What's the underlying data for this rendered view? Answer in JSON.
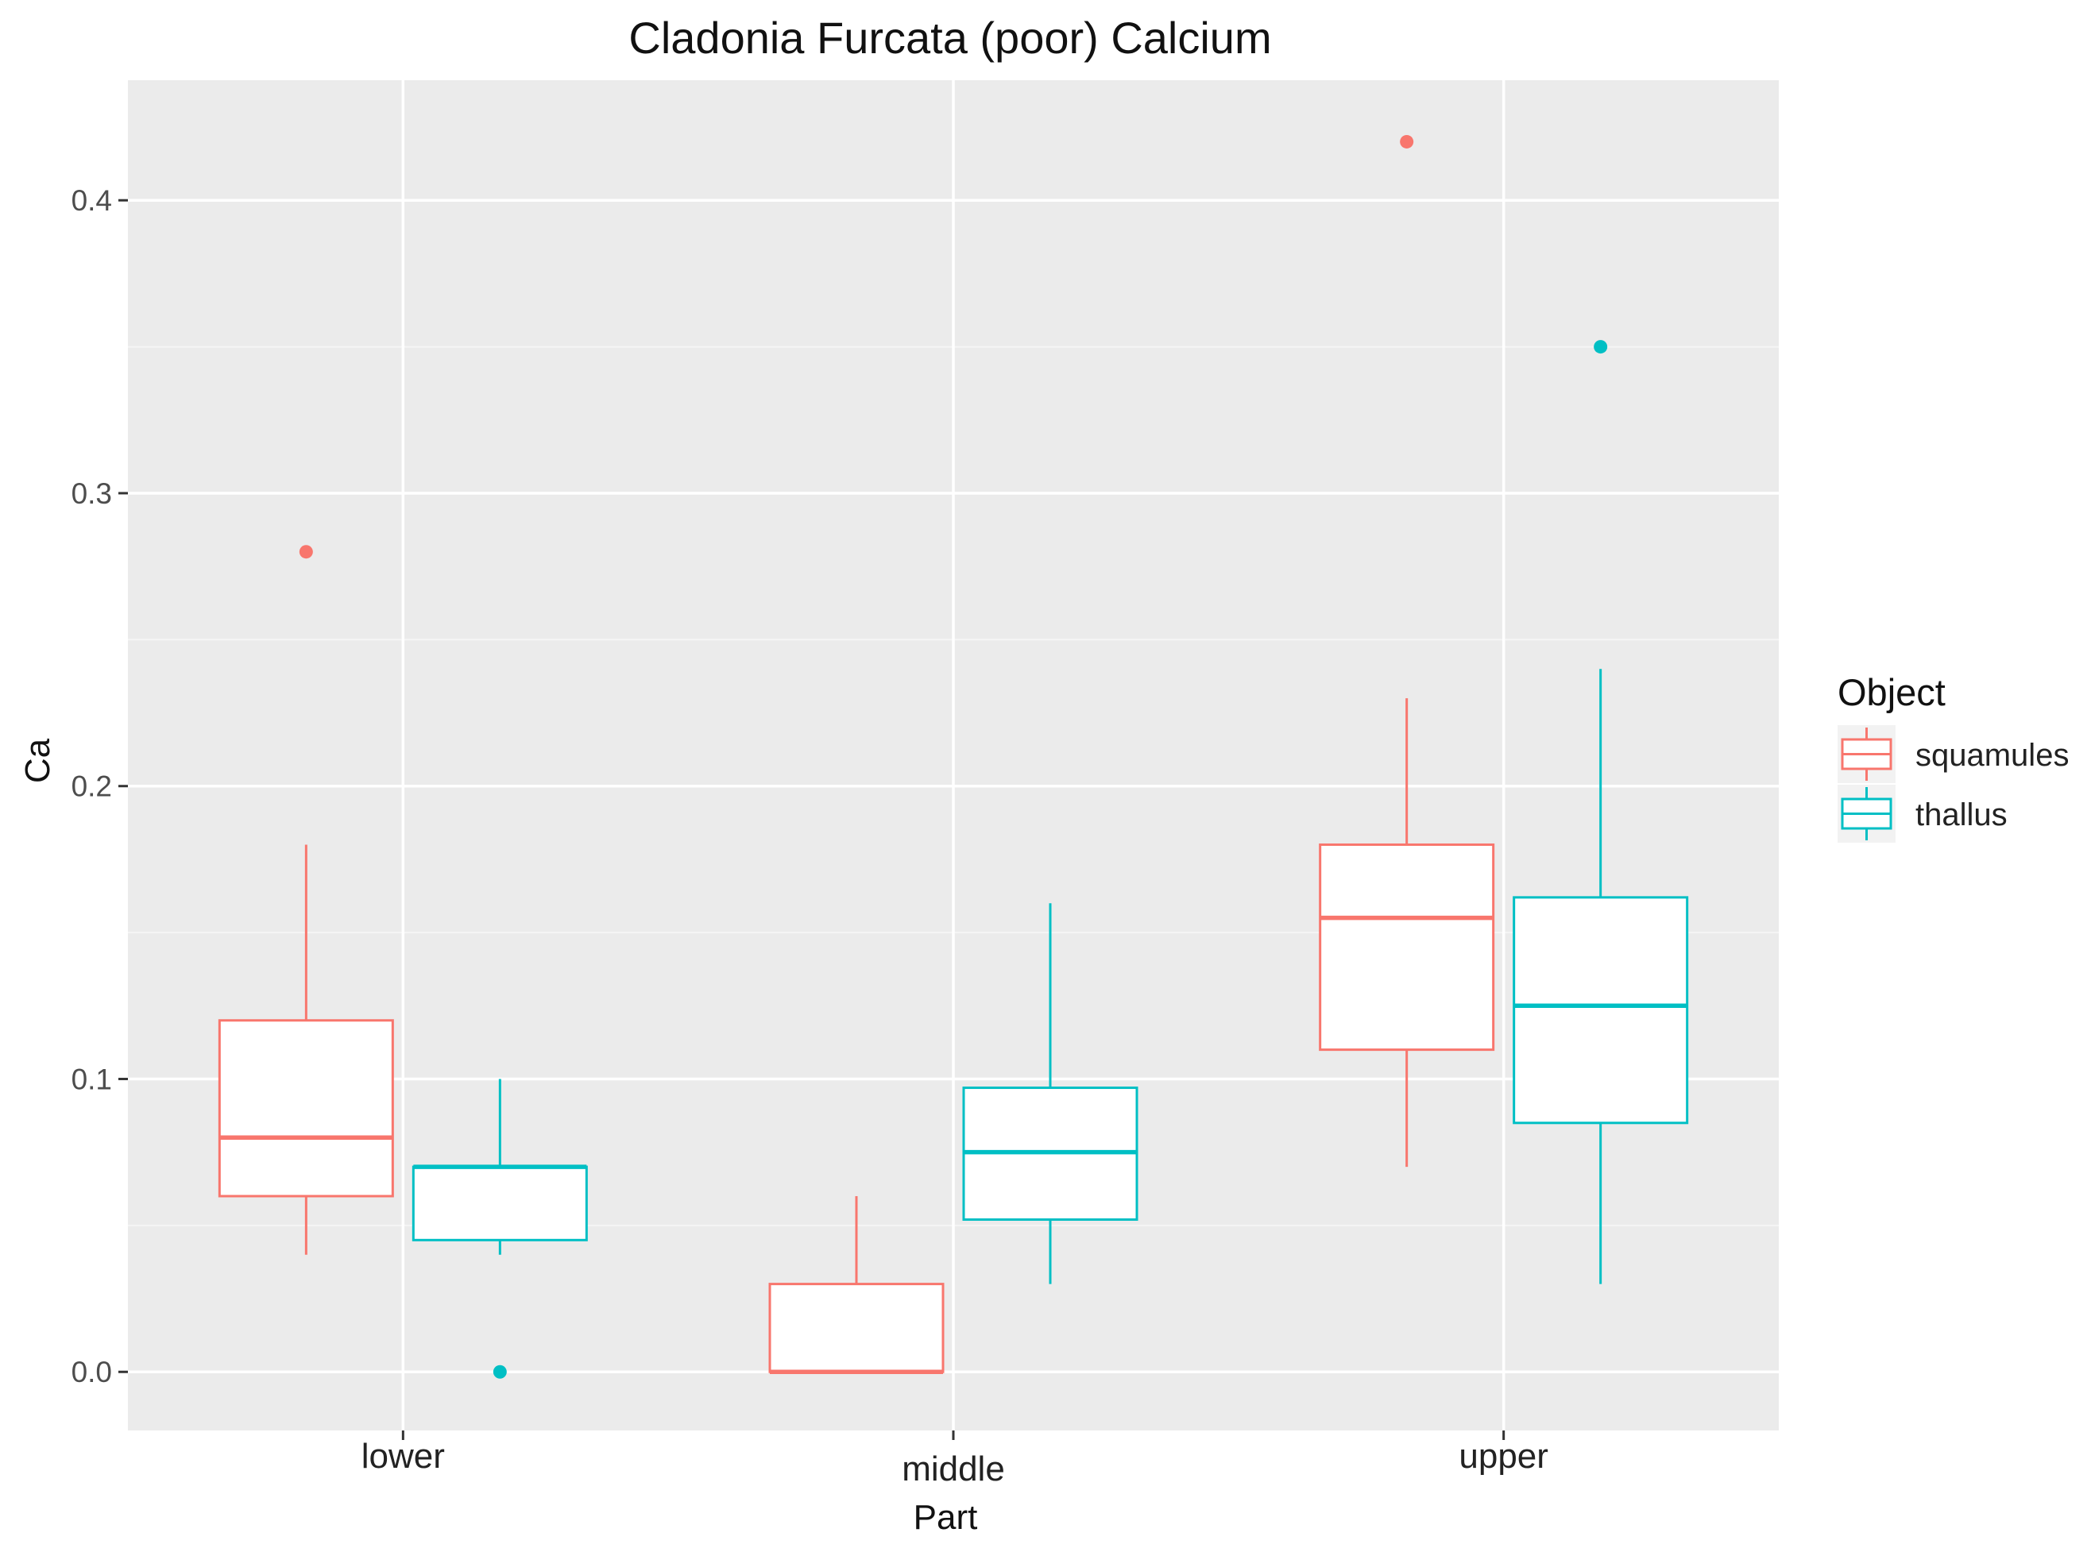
{
  "chart_data": {
    "type": "boxplot",
    "title": "Cladonia Furcata (poor) Calcium",
    "xlabel": "Part",
    "ylabel": "Ca",
    "categories": [
      "lower",
      "middle",
      "upper"
    ],
    "ylim": [
      -0.02,
      0.441
    ],
    "yticks": [
      0.0,
      0.1,
      0.2,
      0.3,
      0.4
    ],
    "ytick_labels": [
      "0.0",
      "0.1",
      "0.2",
      "0.3",
      "0.4"
    ],
    "grid": true,
    "legend": {
      "title": "Object",
      "position": "right"
    },
    "series": [
      {
        "name": "squamules",
        "color": "#F8766D",
        "boxes": [
          {
            "category": "lower",
            "whisker_low": 0.04,
            "q1": 0.06,
            "median": 0.08,
            "q3": 0.12,
            "whisker_high": 0.18,
            "outliers": [
              0.28
            ]
          },
          {
            "category": "middle",
            "whisker_low": 0.0,
            "q1": 0.0,
            "median": 0.0,
            "q3": 0.03,
            "whisker_high": 0.06,
            "outliers": []
          },
          {
            "category": "upper",
            "whisker_low": 0.07,
            "q1": 0.11,
            "median": 0.155,
            "q3": 0.18,
            "whisker_high": 0.23,
            "outliers": [
              0.42
            ]
          }
        ]
      },
      {
        "name": "thallus",
        "color": "#00BFC4",
        "boxes": [
          {
            "category": "lower",
            "whisker_low": 0.04,
            "q1": 0.045,
            "median": 0.07,
            "q3": 0.07,
            "whisker_high": 0.1,
            "outliers": [
              0.0
            ]
          },
          {
            "category": "middle",
            "whisker_low": 0.03,
            "q1": 0.052,
            "median": 0.075,
            "q3": 0.097,
            "whisker_high": 0.16,
            "outliers": []
          },
          {
            "category": "upper",
            "whisker_low": 0.03,
            "q1": 0.085,
            "median": 0.125,
            "q3": 0.162,
            "whisker_high": 0.24,
            "outliers": [
              0.35
            ]
          }
        ]
      }
    ]
  }
}
